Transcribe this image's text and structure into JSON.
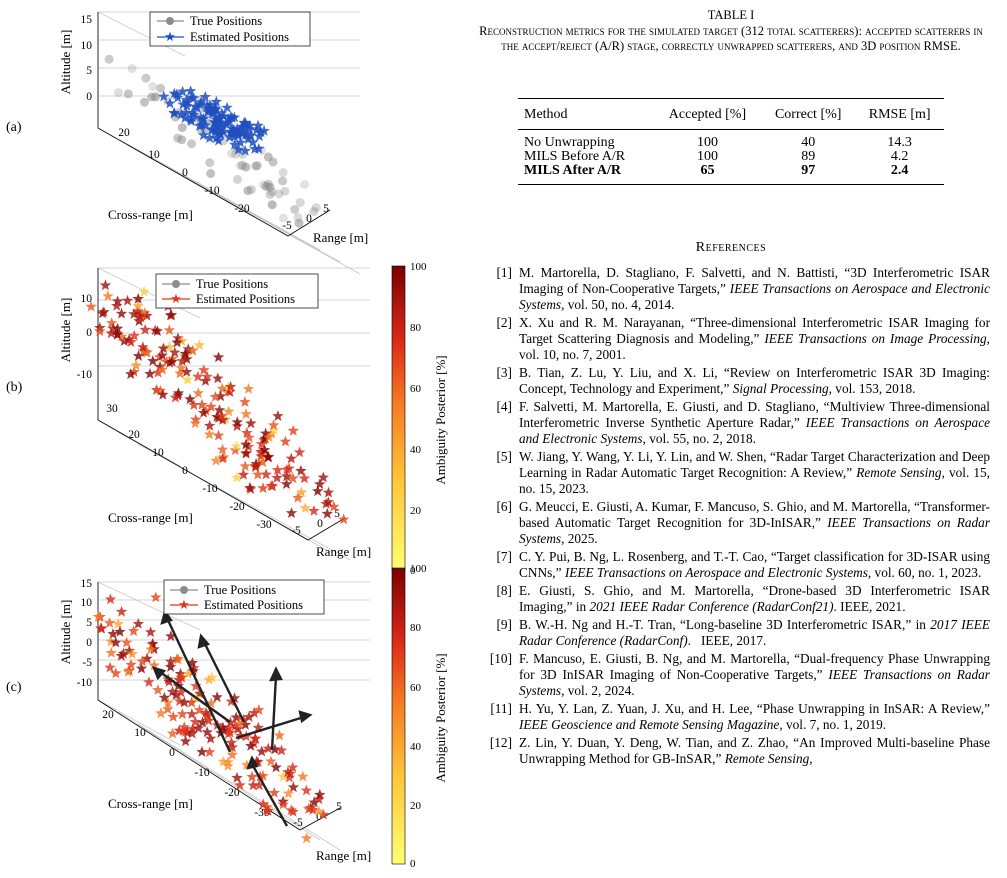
{
  "figure": {
    "panels": [
      {
        "label": "(a)",
        "legend": [
          "True Positions",
          "Estimated Positions"
        ],
        "ylabel": "Altitude [m]",
        "xlabel": "Cross-range [m]",
        "rlabel": "Range [m]",
        "yticks": [
          "15",
          "10",
          "5",
          "0"
        ],
        "xticks": [
          "20",
          "10",
          "0",
          "-10",
          "-20"
        ],
        "rticks": [
          "0",
          "5",
          "-5"
        ]
      },
      {
        "label": "(b)",
        "legend": [
          "True Positions",
          "Estimated Positions"
        ],
        "ylabel": "Altitude [m]",
        "xlabel": "Cross-range [m]",
        "rlabel": "Range [m]",
        "yticks": [
          "10",
          "0",
          "-10"
        ],
        "xticks": [
          "30",
          "20",
          "10",
          "0",
          "-10",
          "-20",
          "-30"
        ],
        "rticks": [
          "0",
          "5",
          "-5"
        ],
        "cbar_label": "Ambiguity Posterior [%]",
        "cbar_ticks": [
          "100",
          "80",
          "60",
          "40",
          "20",
          "0"
        ]
      },
      {
        "label": "(c)",
        "legend": [
          "True Positions",
          "Estimated Positions"
        ],
        "ylabel": "Altitude [m]",
        "xlabel": "Cross-range [m]",
        "rlabel": "Range [m]",
        "yticks": [
          "15",
          "10",
          "5",
          "0",
          "-5",
          "-10"
        ],
        "xticks": [
          "20",
          "10",
          "0",
          "-10",
          "-20",
          "-30"
        ],
        "rticks": [
          "0",
          "5",
          "-5"
        ],
        "cbar_label": "Ambiguity Posterior [%]",
        "cbar_ticks": [
          "100",
          "80",
          "60",
          "40",
          "20",
          "0"
        ]
      }
    ],
    "colors": {
      "true": "#8c8c8c",
      "est_a": "#1f4fbf",
      "cbar_top": "#7a0000",
      "cbar_mid": "#e8341c",
      "cbar_low": "#ffff70"
    }
  },
  "table": {
    "number": "TABLE I",
    "caption": "Reconstruction metrics for the simulated target (312 total scatterers): accepted scatterers in the accept/reject (A/R) stage, correctly unwrapped scatterers, and 3D position RMSE.",
    "headers": [
      "Method",
      "Accepted [%]",
      "Correct [%]",
      "RMSE [m]"
    ],
    "rows": [
      [
        "No Unwrapping",
        "100",
        "40",
        "14.3"
      ],
      [
        "MILS Before A/R",
        "100",
        "89",
        "4.2"
      ],
      [
        "MILS After A/R",
        "65",
        "97",
        "2.4"
      ]
    ]
  },
  "references": {
    "title": "References",
    "items": [
      {
        "num": "[1]",
        "text": "M. Martorella, D. Stagliano, F. Salvetti, and N. Battisti, “3D Interferometric ISAR Imaging of Non-Cooperative Targets,” <i>IEEE Transactions on Aerospace and Electronic Systems</i>, vol. 50, no. 4, 2014."
      },
      {
        "num": "[2]",
        "text": "X. Xu and R. M. Narayanan, “Three-dimensional Interferometric ISAR Imaging for Target Scattering Diagnosis and Modeling,” <i>IEEE Transactions on Image Processing</i>, vol. 10, no. 7, 2001."
      },
      {
        "num": "[3]",
        "text": "B. Tian, Z. Lu, Y. Liu, and X. Li, “Review on Interferometric ISAR 3D Imaging: Concept, Technology and Experiment,” <i>Signal Processing</i>, vol. 153, 2018."
      },
      {
        "num": "[4]",
        "text": "F. Salvetti, M. Martorella, E. Giusti, and D. Stagliano, “Multiview Three-dimensional Interferometric Inverse Synthetic Aperture Radar,” <i>IEEE Transactions on Aerospace and Electronic Systems</i>, vol. 55, no. 2, 2018."
      },
      {
        "num": "[5]",
        "text": "W. Jiang, Y. Wang, Y. Li, Y. Lin, and W. Shen, “Radar Target Characterization and Deep Learning in Radar Automatic Target Recognition: A Review,” <i>Remote Sensing</i>, vol. 15, no. 15, 2023."
      },
      {
        "num": "[6]",
        "text": "G. Meucci, E. Giusti, A. Kumar, F. Mancuso, S. Ghio, and M. Martorella, “Transformer-based Automatic Target Recognition for 3D-InISAR,” <i>IEEE Transactions on Radar Systems</i>, 2025."
      },
      {
        "num": "[7]",
        "text": "C. Y. Pui, B. Ng, L. Rosenberg, and T.-T. Cao, “Target classification for 3D-ISAR using CNNs,” <i>IEEE Transactions on Aerospace and Electronic Systems</i>, vol. 60, no. 1, 2023."
      },
      {
        "num": "[8]",
        "text": "E. Giusti, S. Ghio, and M. Martorella, “Drone-based 3D Interferometric ISAR Imaging,” in <i>2021 IEEE Radar Conference (RadarConf21)</i>. IEEE, 2021."
      },
      {
        "num": "[9]",
        "text": "B. W.-H. Ng and H.-T. Tran, “Long-baseline 3D Interferometric ISAR,” in <i>2017 IEEE Radar Conference (RadarConf)</i>.&nbsp;&nbsp; IEEE, 2017."
      },
      {
        "num": "[10]",
        "text": "F. Mancuso, E. Giusti, B. Ng, and M. Martorella, “Dual-frequency Phase Unwrapping for 3D InISAR Imaging of Non-Cooperative Targets,” <i>IEEE Transactions on Radar Systems</i>, vol. 2, 2024."
      },
      {
        "num": "[11]",
        "text": "H. Yu, Y. Lan, Z. Yuan, J. Xu, and H. Lee, “Phase Unwrapping in InSAR: A Review,” <i>IEEE Geoscience and Remote Sensing Magazine</i>, vol. 7, no. 1, 2019."
      },
      {
        "num": "[12]",
        "text": "Z. Lin, Y. Duan, Y. Deng, W. Tian, and Z. Zhao, “An Improved Multi-baseline Phase Unwrapping Method for GB-InSAR,” <i>Remote Sensing</i>,"
      }
    ]
  }
}
